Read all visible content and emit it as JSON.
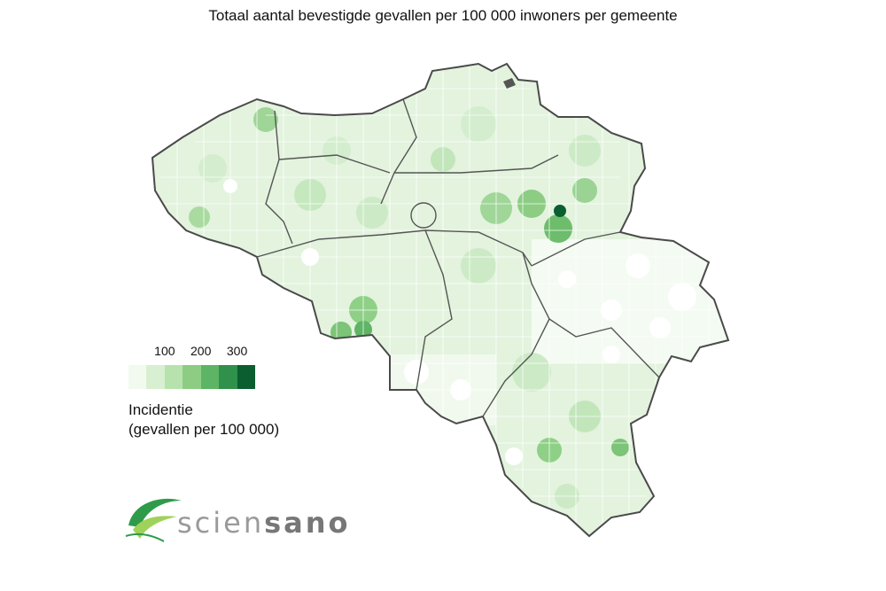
{
  "title": "Totaal aantal bevestigde gevallen per 100 000 inwoners per gemeente",
  "legend": {
    "ticks": [
      "100",
      "200",
      "300"
    ],
    "tick_values": [
      100,
      200,
      300
    ],
    "range": [
      0,
      350
    ],
    "title_line1": "Incidentie",
    "title_line2": "(gevallen per 100 000)",
    "colors": [
      "#f2faf0",
      "#d8efd2",
      "#b7e2ae",
      "#8ccd83",
      "#5db465",
      "#2f914a",
      "#0b5e30"
    ]
  },
  "logo": {
    "part1": "scien",
    "part2": "sano"
  },
  "map_colors": {
    "border": "#444444",
    "very_low": "#ffffff",
    "low": "#e6f4e1",
    "mid_low": "#cdeac6",
    "mid": "#a9dba0",
    "mid_high": "#7cc477",
    "high": "#48a55a",
    "very_high": "#0b5e30"
  }
}
